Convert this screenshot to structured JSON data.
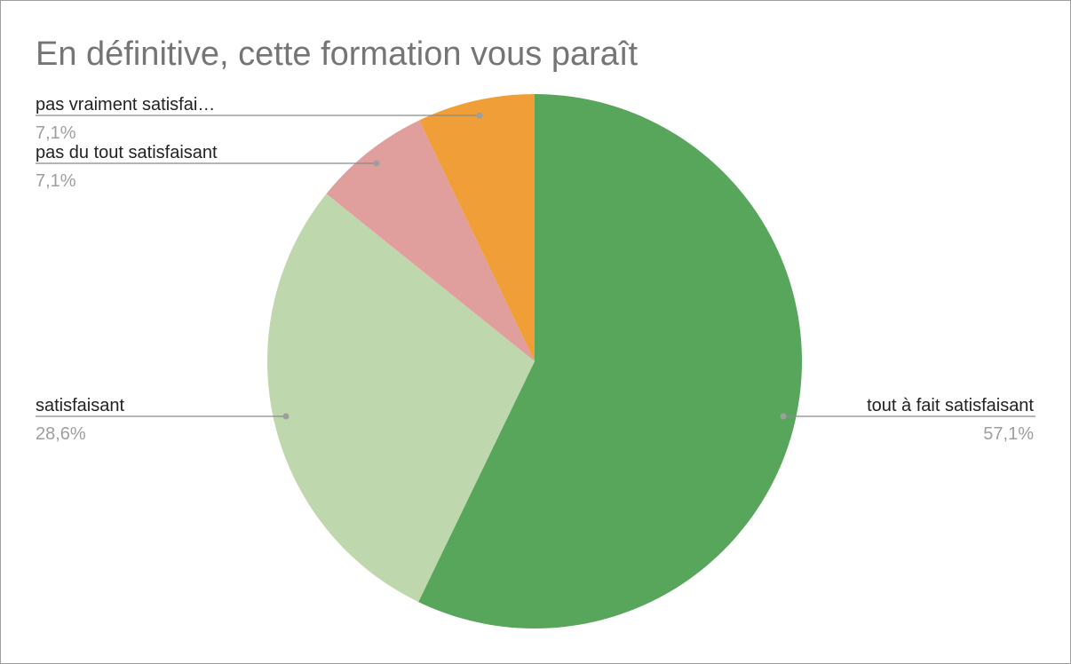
{
  "chart_data": {
    "type": "pie",
    "title": "En définitive, cette formation vous paraît",
    "start_angle_deg": 0,
    "direction": "clockwise",
    "slices": [
      {
        "label": "tout à fait satisfaisant",
        "display_label": "tout à fait satisfaisant",
        "value": 57.1,
        "percent_label": "57,1%",
        "color": "#58a55c",
        "label_side": "right"
      },
      {
        "label": "satisfaisant",
        "display_label": "satisfaisant",
        "value": 28.6,
        "percent_label": "28,6%",
        "color": "#bfd7ad",
        "label_side": "left"
      },
      {
        "label": "pas du tout satisfaisant",
        "display_label": "pas du tout satisfaisant",
        "value": 7.1,
        "percent_label": "7,1%",
        "color": "#e09e9c",
        "label_side": "left"
      },
      {
        "label": "pas vraiment satisfaisant",
        "display_label": "pas vraiment satisfai…",
        "value": 7.1,
        "percent_label": "7,1%",
        "color": "#f09e38",
        "label_side": "left"
      }
    ]
  }
}
